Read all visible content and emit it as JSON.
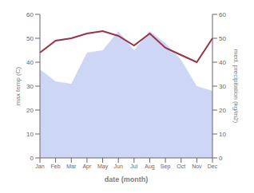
{
  "chart_data": {
    "type": "line",
    "xlabel": "date (month)",
    "ylabel": "max temp (C)",
    "y2label": "med. precipitation (kg/m2)",
    "categories": [
      "Jan",
      "Feb",
      "Mar",
      "Apr",
      "May",
      "Jun",
      "Jul",
      "Aug",
      "Sep",
      "Oct",
      "Nov",
      "Dec"
    ],
    "series": [
      {
        "type": "area",
        "axis": "y2",
        "color": "#b8c4ef",
        "values": [
          37,
          32,
          31,
          44,
          45,
          53,
          45,
          53,
          48,
          41,
          30,
          28
        ]
      },
      {
        "type": "line",
        "color": "#993344",
        "values": [
          44,
          49,
          50,
          52,
          53,
          51,
          47,
          52,
          46,
          43,
          40,
          50
        ]
      }
    ],
    "ylim": [
      0,
      60
    ],
    "yticks": [
      0,
      10,
      20,
      30,
      40,
      50,
      60
    ],
    "y2lim": [
      0,
      60
    ],
    "y2ticks": [
      0,
      10,
      20,
      30,
      40,
      50,
      60
    ],
    "grid": false
  }
}
